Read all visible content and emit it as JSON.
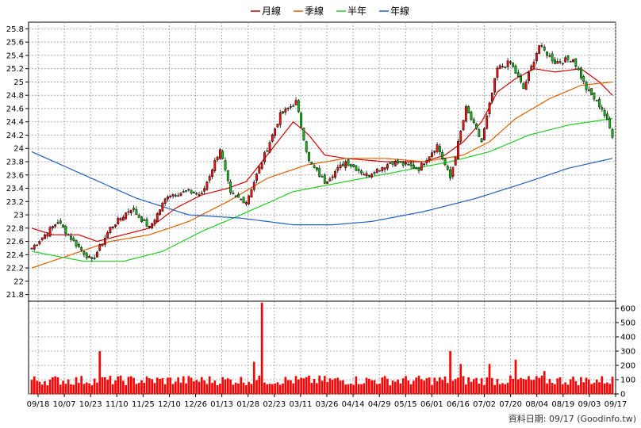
{
  "chart_data": {
    "type": "candlestick-volume",
    "legend": [
      {
        "label": "月線",
        "color": "#d40000"
      },
      {
        "label": "季線",
        "color": "#e06000"
      },
      {
        "label": "半年",
        "color": "#22cc22"
      },
      {
        "label": "年線",
        "color": "#1f5fbf"
      }
    ],
    "price_axis": {
      "ticks": [
        21.8,
        22,
        22.2,
        22.4,
        22.6,
        22.8,
        23,
        23.2,
        23.4,
        23.6,
        23.8,
        24,
        24.2,
        24.4,
        24.6,
        24.8,
        25,
        25.2,
        25.4,
        25.6,
        25.8
      ],
      "range": [
        21.7,
        25.9
      ]
    },
    "volume_axis": {
      "ticks": [
        0,
        100,
        200,
        300,
        400,
        500,
        600
      ],
      "range": [
        0,
        650
      ]
    },
    "x_labels": [
      "09/18",
      "10/07",
      "10/23",
      "11/10",
      "11/25",
      "12/10",
      "12/26",
      "01/13",
      "01/28",
      "02/23",
      "03/11",
      "03/26",
      "04/14",
      "04/29",
      "05/15",
      "06/01",
      "06/16",
      "07/02",
      "07/20",
      "08/04",
      "08/19",
      "09/03",
      "09/17"
    ],
    "grid": true,
    "legend_position": "top-center",
    "footer": "資料日期: 09/17  (Goodinfo.tw)",
    "close_anchors": [
      [
        0,
        22.5
      ],
      [
        10,
        22.9
      ],
      [
        16,
        22.6
      ],
      [
        23,
        22.3
      ],
      [
        30,
        22.8
      ],
      [
        38,
        23.1
      ],
      [
        45,
        22.8
      ],
      [
        52,
        23.3
      ],
      [
        60,
        23.35
      ],
      [
        65,
        23.3
      ],
      [
        72,
        24.0
      ],
      [
        76,
        23.3
      ],
      [
        82,
        23.2
      ],
      [
        88,
        23.8
      ],
      [
        95,
        24.5
      ],
      [
        101,
        24.7
      ],
      [
        106,
        23.8
      ],
      [
        112,
        23.5
      ],
      [
        120,
        23.8
      ],
      [
        128,
        23.6
      ],
      [
        138,
        23.8
      ],
      [
        148,
        23.7
      ],
      [
        155,
        24.05
      ],
      [
        160,
        23.55
      ],
      [
        166,
        24.6
      ],
      [
        172,
        24.1
      ],
      [
        178,
        25.2
      ],
      [
        183,
        25.3
      ],
      [
        188,
        24.9
      ],
      [
        194,
        25.55
      ],
      [
        200,
        25.3
      ],
      [
        207,
        25.35
      ],
      [
        212,
        24.9
      ],
      [
        218,
        24.6
      ],
      [
        222,
        24.2
      ]
    ],
    "ma": {
      "month": [
        [
          0,
          22.8
        ],
        [
          8,
          22.7
        ],
        [
          18,
          22.7
        ],
        [
          25,
          22.6
        ],
        [
          35,
          22.7
        ],
        [
          45,
          22.8
        ],
        [
          55,
          23.1
        ],
        [
          65,
          23.3
        ],
        [
          75,
          23.4
        ],
        [
          82,
          23.5
        ],
        [
          88,
          23.8
        ],
        [
          94,
          24.1
        ],
        [
          100,
          24.4
        ],
        [
          106,
          24.2
        ],
        [
          112,
          23.9
        ],
        [
          120,
          23.85
        ],
        [
          135,
          23.8
        ],
        [
          150,
          23.8
        ],
        [
          158,
          23.9
        ],
        [
          165,
          24.1
        ],
        [
          172,
          24.4
        ],
        [
          178,
          24.85
        ],
        [
          185,
          25.05
        ],
        [
          192,
          25.2
        ],
        [
          200,
          25.15
        ],
        [
          210,
          25.2
        ],
        [
          217,
          25.0
        ],
        [
          222,
          24.8
        ]
      ],
      "quarter": [
        [
          0,
          22.2
        ],
        [
          15,
          22.4
        ],
        [
          30,
          22.6
        ],
        [
          45,
          22.7
        ],
        [
          60,
          22.9
        ],
        [
          75,
          23.2
        ],
        [
          90,
          23.55
        ],
        [
          105,
          23.75
        ],
        [
          120,
          23.85
        ],
        [
          135,
          23.85
        ],
        [
          150,
          23.8
        ],
        [
          165,
          23.9
        ],
        [
          175,
          24.1
        ],
        [
          185,
          24.45
        ],
        [
          198,
          24.75
        ],
        [
          210,
          24.95
        ],
        [
          222,
          25.0
        ]
      ],
      "half": [
        [
          0,
          22.45
        ],
        [
          20,
          22.3
        ],
        [
          35,
          22.3
        ],
        [
          50,
          22.45
        ],
        [
          65,
          22.75
        ],
        [
          80,
          23.0
        ],
        [
          100,
          23.35
        ],
        [
          120,
          23.5
        ],
        [
          140,
          23.65
        ],
        [
          160,
          23.8
        ],
        [
          175,
          23.95
        ],
        [
          190,
          24.2
        ],
        [
          205,
          24.35
        ],
        [
          222,
          24.45
        ]
      ],
      "year": [
        [
          0,
          23.95
        ],
        [
          20,
          23.6
        ],
        [
          40,
          23.25
        ],
        [
          60,
          23.0
        ],
        [
          80,
          22.95
        ],
        [
          100,
          22.85
        ],
        [
          115,
          22.85
        ],
        [
          130,
          22.9
        ],
        [
          150,
          23.05
        ],
        [
          170,
          23.25
        ],
        [
          190,
          23.5
        ],
        [
          205,
          23.7
        ],
        [
          222,
          23.85
        ]
      ]
    },
    "volume_spikes": [
      [
        26,
        300
      ],
      [
        85,
        225
      ],
      [
        88,
        640
      ],
      [
        160,
        300
      ],
      [
        164,
        210
      ],
      [
        175,
        210
      ],
      [
        185,
        240
      ],
      [
        196,
        160
      ]
    ]
  }
}
